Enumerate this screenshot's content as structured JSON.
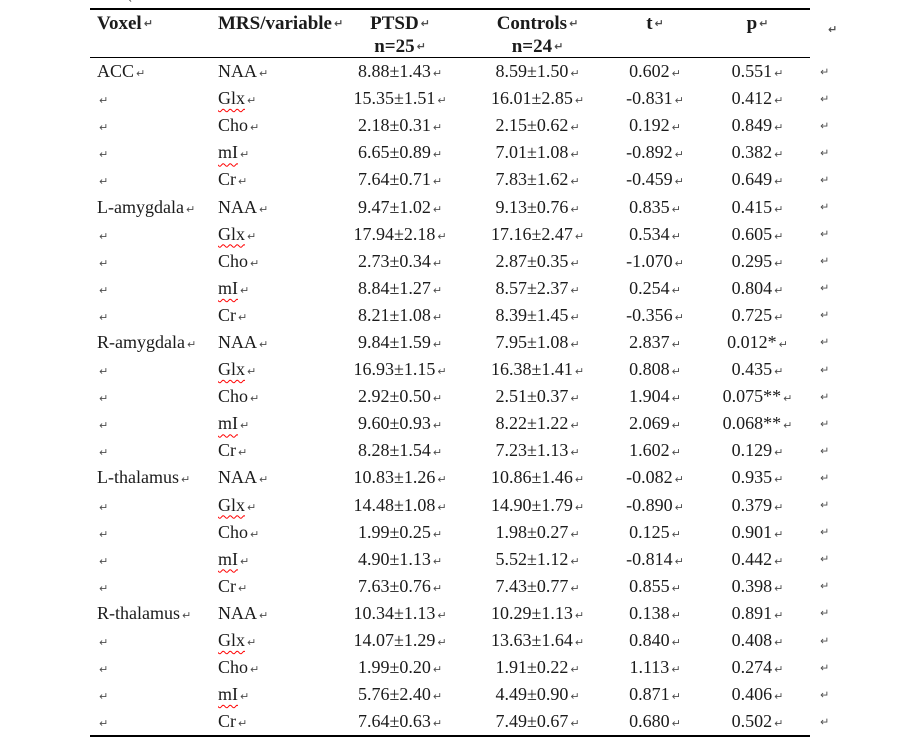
{
  "marks": {
    "pilcrow": "↵"
  },
  "colors": {
    "text": "#1b1b1b",
    "border": "#000000",
    "formatting_mark": "#4d4d4d",
    "spellcheck_underline": "#ff0000"
  },
  "table": {
    "columns": [
      {
        "key": "voxel",
        "label": "Voxel"
      },
      {
        "key": "variable",
        "label": "MRS/variable"
      },
      {
        "key": "ptsd",
        "label": "PTSD",
        "sub": "n=25"
      },
      {
        "key": "controls",
        "label": "Controls",
        "sub": "n=24"
      },
      {
        "key": "t",
        "label": "t"
      },
      {
        "key": "p",
        "label": "p"
      }
    ],
    "rows": [
      {
        "voxel": "ACC",
        "variable": "NAA",
        "ptsd": "8.88±1.43",
        "controls": "8.59±1.50",
        "t": "0.602",
        "p": "0.551",
        "spellcheck": false
      },
      {
        "voxel": "",
        "variable": "Glx",
        "ptsd": "15.35±1.51",
        "controls": "16.01±2.85",
        "t": "-0.831",
        "p": "0.412",
        "spellcheck": true
      },
      {
        "voxel": "",
        "variable": "Cho",
        "ptsd": "2.18±0.31",
        "controls": "2.15±0.62",
        "t": "0.192",
        "p": "0.849",
        "spellcheck": false
      },
      {
        "voxel": "",
        "variable": "mI",
        "ptsd": "6.65±0.89",
        "controls": "7.01±1.08",
        "t": "-0.892",
        "p": "0.382",
        "spellcheck": true
      },
      {
        "voxel": "",
        "variable": "Cr",
        "ptsd": "7.64±0.71",
        "controls": "7.83±1.62",
        "t": "-0.459",
        "p": "0.649",
        "spellcheck": false
      },
      {
        "voxel": "L-amygdala",
        "variable": "NAA",
        "ptsd": "9.47±1.02",
        "controls": "9.13±0.76",
        "t": "0.835",
        "p": "0.415",
        "spellcheck": false
      },
      {
        "voxel": "",
        "variable": "Glx",
        "ptsd": "17.94±2.18",
        "controls": "17.16±2.47",
        "t": "0.534",
        "p": "0.605",
        "spellcheck": true
      },
      {
        "voxel": "",
        "variable": "Cho",
        "ptsd": "2.73±0.34",
        "controls": "2.87±0.35",
        "t": "-1.070",
        "p": "0.295",
        "spellcheck": false
      },
      {
        "voxel": "",
        "variable": "mI",
        "ptsd": "8.84±1.27",
        "controls": "8.57±2.37",
        "t": "0.254",
        "p": "0.804",
        "spellcheck": true
      },
      {
        "voxel": "",
        "variable": "Cr",
        "ptsd": "8.21±1.08",
        "controls": "8.39±1.45",
        "t": "-0.356",
        "p": "0.725",
        "spellcheck": false
      },
      {
        "voxel": "R-amygdala",
        "variable": "NAA",
        "ptsd": "9.84±1.59",
        "controls": "7.95±1.08",
        "t": "2.837",
        "p": "0.012*",
        "spellcheck": false
      },
      {
        "voxel": "",
        "variable": "Glx",
        "ptsd": "16.93±1.15",
        "controls": "16.38±1.41",
        "t": "0.808",
        "p": "0.435",
        "spellcheck": true
      },
      {
        "voxel": "",
        "variable": "Cho",
        "ptsd": "2.92±0.50",
        "controls": "2.51±0.37",
        "t": "1.904",
        "p": "0.075**",
        "spellcheck": false
      },
      {
        "voxel": "",
        "variable": "mI",
        "ptsd": "9.60±0.93",
        "controls": "8.22±1.22",
        "t": "2.069",
        "p": "0.068**",
        "spellcheck": true
      },
      {
        "voxel": "",
        "variable": "Cr",
        "ptsd": "8.28±1.54",
        "controls": "7.23±1.13",
        "t": "1.602",
        "p": "0.129",
        "spellcheck": false
      },
      {
        "voxel": "L-thalamus",
        "variable": "NAA",
        "ptsd": "10.83±1.26",
        "controls": "10.86±1.46",
        "t": "-0.082",
        "p": "0.935",
        "spellcheck": false
      },
      {
        "voxel": "",
        "variable": "Glx",
        "ptsd": "14.48±1.08",
        "controls": "14.90±1.79",
        "t": "-0.890",
        "p": "0.379",
        "spellcheck": true
      },
      {
        "voxel": "",
        "variable": "Cho",
        "ptsd": "1.99±0.25",
        "controls": "1.98±0.27",
        "t": "0.125",
        "p": "0.901",
        "spellcheck": false
      },
      {
        "voxel": "",
        "variable": "mI",
        "ptsd": "4.90±1.13",
        "controls": "5.52±1.12",
        "t": "-0.814",
        "p": "0.442",
        "spellcheck": true
      },
      {
        "voxel": "",
        "variable": "Cr",
        "ptsd": "7.63±0.76",
        "controls": "7.43±0.77",
        "t": "0.855",
        "p": "0.398",
        "spellcheck": false
      },
      {
        "voxel": "R-thalamus",
        "variable": "NAA",
        "ptsd": "10.34±1.13",
        "controls": "10.29±1.13",
        "t": "0.138",
        "p": "0.891",
        "spellcheck": false
      },
      {
        "voxel": "",
        "variable": "Glx",
        "ptsd": "14.07±1.29",
        "controls": "13.63±1.64",
        "t": "0.840",
        "p": "0.408",
        "spellcheck": true
      },
      {
        "voxel": "",
        "variable": "Cho",
        "ptsd": "1.99±0.20",
        "controls": "1.91±0.22",
        "t": "1.113",
        "p": "0.274",
        "spellcheck": false
      },
      {
        "voxel": "",
        "variable": "mI",
        "ptsd": "5.76±2.40",
        "controls": "4.49±0.90",
        "t": "0.871",
        "p": "0.406",
        "spellcheck": true
      },
      {
        "voxel": "",
        "variable": "Cr",
        "ptsd": "7.64±0.63",
        "controls": "7.49±0.67",
        "t": "0.680",
        "p": "0.502",
        "spellcheck": false
      }
    ]
  }
}
